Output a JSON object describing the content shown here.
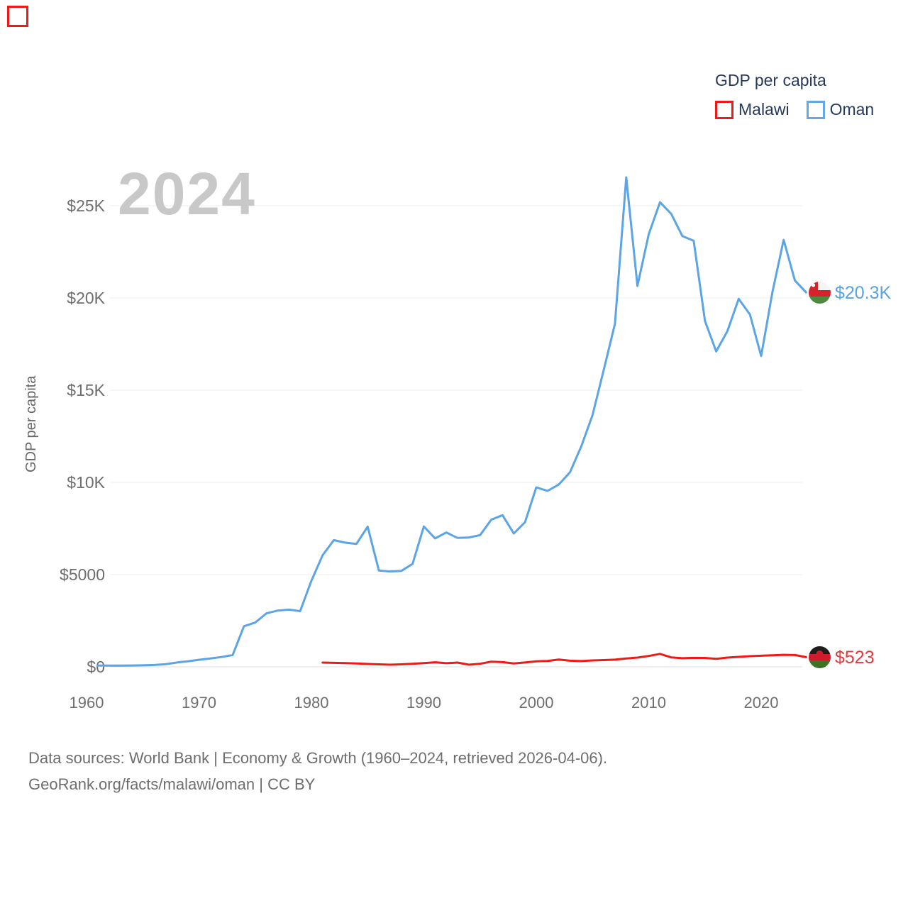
{
  "watermark_year": "2024",
  "legend": {
    "title": "GDP per capita",
    "items": [
      {
        "label": "Malawi",
        "color": "#ed1a15"
      },
      {
        "label": "Oman",
        "color": "#63a8e8"
      }
    ]
  },
  "icons": {
    "malawi_flag": "malawi-flag-icon",
    "oman_flag": "oman-flag-icon"
  },
  "chart_data": {
    "type": "line",
    "title": "GDP per capita",
    "ylabel": "GDP per capita",
    "xlabel": "",
    "grid": true,
    "legend_position": "top-right",
    "xlim": [
      1960,
      2025
    ],
    "ylim": [
      0,
      27000
    ],
    "x_ticks": [
      1960,
      1970,
      1980,
      1990,
      2000,
      2010,
      2020
    ],
    "y_ticks": [
      {
        "label": "$0",
        "value": 0
      },
      {
        "label": "$5000",
        "value": 5000
      },
      {
        "label": "$10K",
        "value": 10000
      },
      {
        "label": "$15K",
        "value": 15000
      },
      {
        "label": "$20K",
        "value": 20000
      },
      {
        "label": "$25K",
        "value": 25000
      }
    ],
    "series": [
      {
        "id": "oman",
        "name": "Oman",
        "line_color": "#5ba4e6",
        "label_color": "#58a2e6",
        "end_label": "$20.3K",
        "end_value": 20300,
        "x": [
          1961,
          1962,
          1963,
          1964,
          1965,
          1966,
          1967,
          1968,
          1969,
          1970,
          1971,
          1972,
          1973,
          1974,
          1975,
          1976,
          1977,
          1978,
          1979,
          1980,
          1981,
          1982,
          1983,
          1984,
          1985,
          1986,
          1987,
          1988,
          1989,
          1990,
          1991,
          1992,
          1993,
          1994,
          1995,
          1996,
          1997,
          1998,
          1999,
          2000,
          2001,
          2002,
          2003,
          2004,
          2005,
          2006,
          2007,
          2008,
          2009,
          2010,
          2011,
          2012,
          2013,
          2014,
          2015,
          2016,
          2017,
          2018,
          2019,
          2020,
          2021,
          2022,
          2023,
          2024
        ],
        "values": [
          65,
          68,
          71,
          74,
          80,
          100,
          140,
          230,
          300,
          382,
          450,
          530,
          640,
          2200,
          2400,
          2900,
          3050,
          3100,
          3020,
          4670,
          6050,
          6870,
          6730,
          6660,
          7600,
          5220,
          5170,
          5200,
          5580,
          7610,
          6960,
          7280,
          6990,
          7010,
          7140,
          7980,
          8220,
          7230,
          7840,
          9730,
          9540,
          9880,
          10550,
          11950,
          13650,
          16100,
          18600,
          26540,
          20650,
          23450,
          25190,
          24560,
          23350,
          23100,
          18750,
          17100,
          18200,
          19950,
          19100,
          16850,
          20300,
          23150,
          20950,
          20300
        ]
      },
      {
        "id": "malawi",
        "name": "Malawi",
        "line_color": "#ed1a15",
        "label_color": "#e13b40",
        "end_label": "$523",
        "end_value": 523,
        "x": [
          1981,
          1982,
          1983,
          1984,
          1985,
          1986,
          1987,
          1988,
          1989,
          1990,
          1991,
          1992,
          1993,
          1994,
          1995,
          1996,
          1997,
          1998,
          1999,
          2000,
          2001,
          2002,
          2003,
          2004,
          2005,
          2006,
          2007,
          2008,
          2009,
          2010,
          2011,
          2012,
          2013,
          2014,
          2015,
          2016,
          2017,
          2018,
          2019,
          2020,
          2021,
          2022,
          2023,
          2024
        ],
        "values": [
          230,
          215,
          200,
          185,
          155,
          135,
          115,
          135,
          160,
          200,
          245,
          195,
          230,
          115,
          165,
          280,
          255,
          180,
          235,
          300,
          320,
          395,
          330,
          310,
          345,
          365,
          390,
          450,
          500,
          590,
          700,
          510,
          465,
          485,
          480,
          430,
          500,
          540,
          575,
          600,
          625,
          650,
          640,
          523
        ]
      }
    ]
  },
  "footer": {
    "line1": "Data sources: World Bank | Economy & Growth (1960–2024, retrieved 2026-04-06).",
    "line2": "GeoRank.org/facts/malawi/oman | CC BY"
  }
}
